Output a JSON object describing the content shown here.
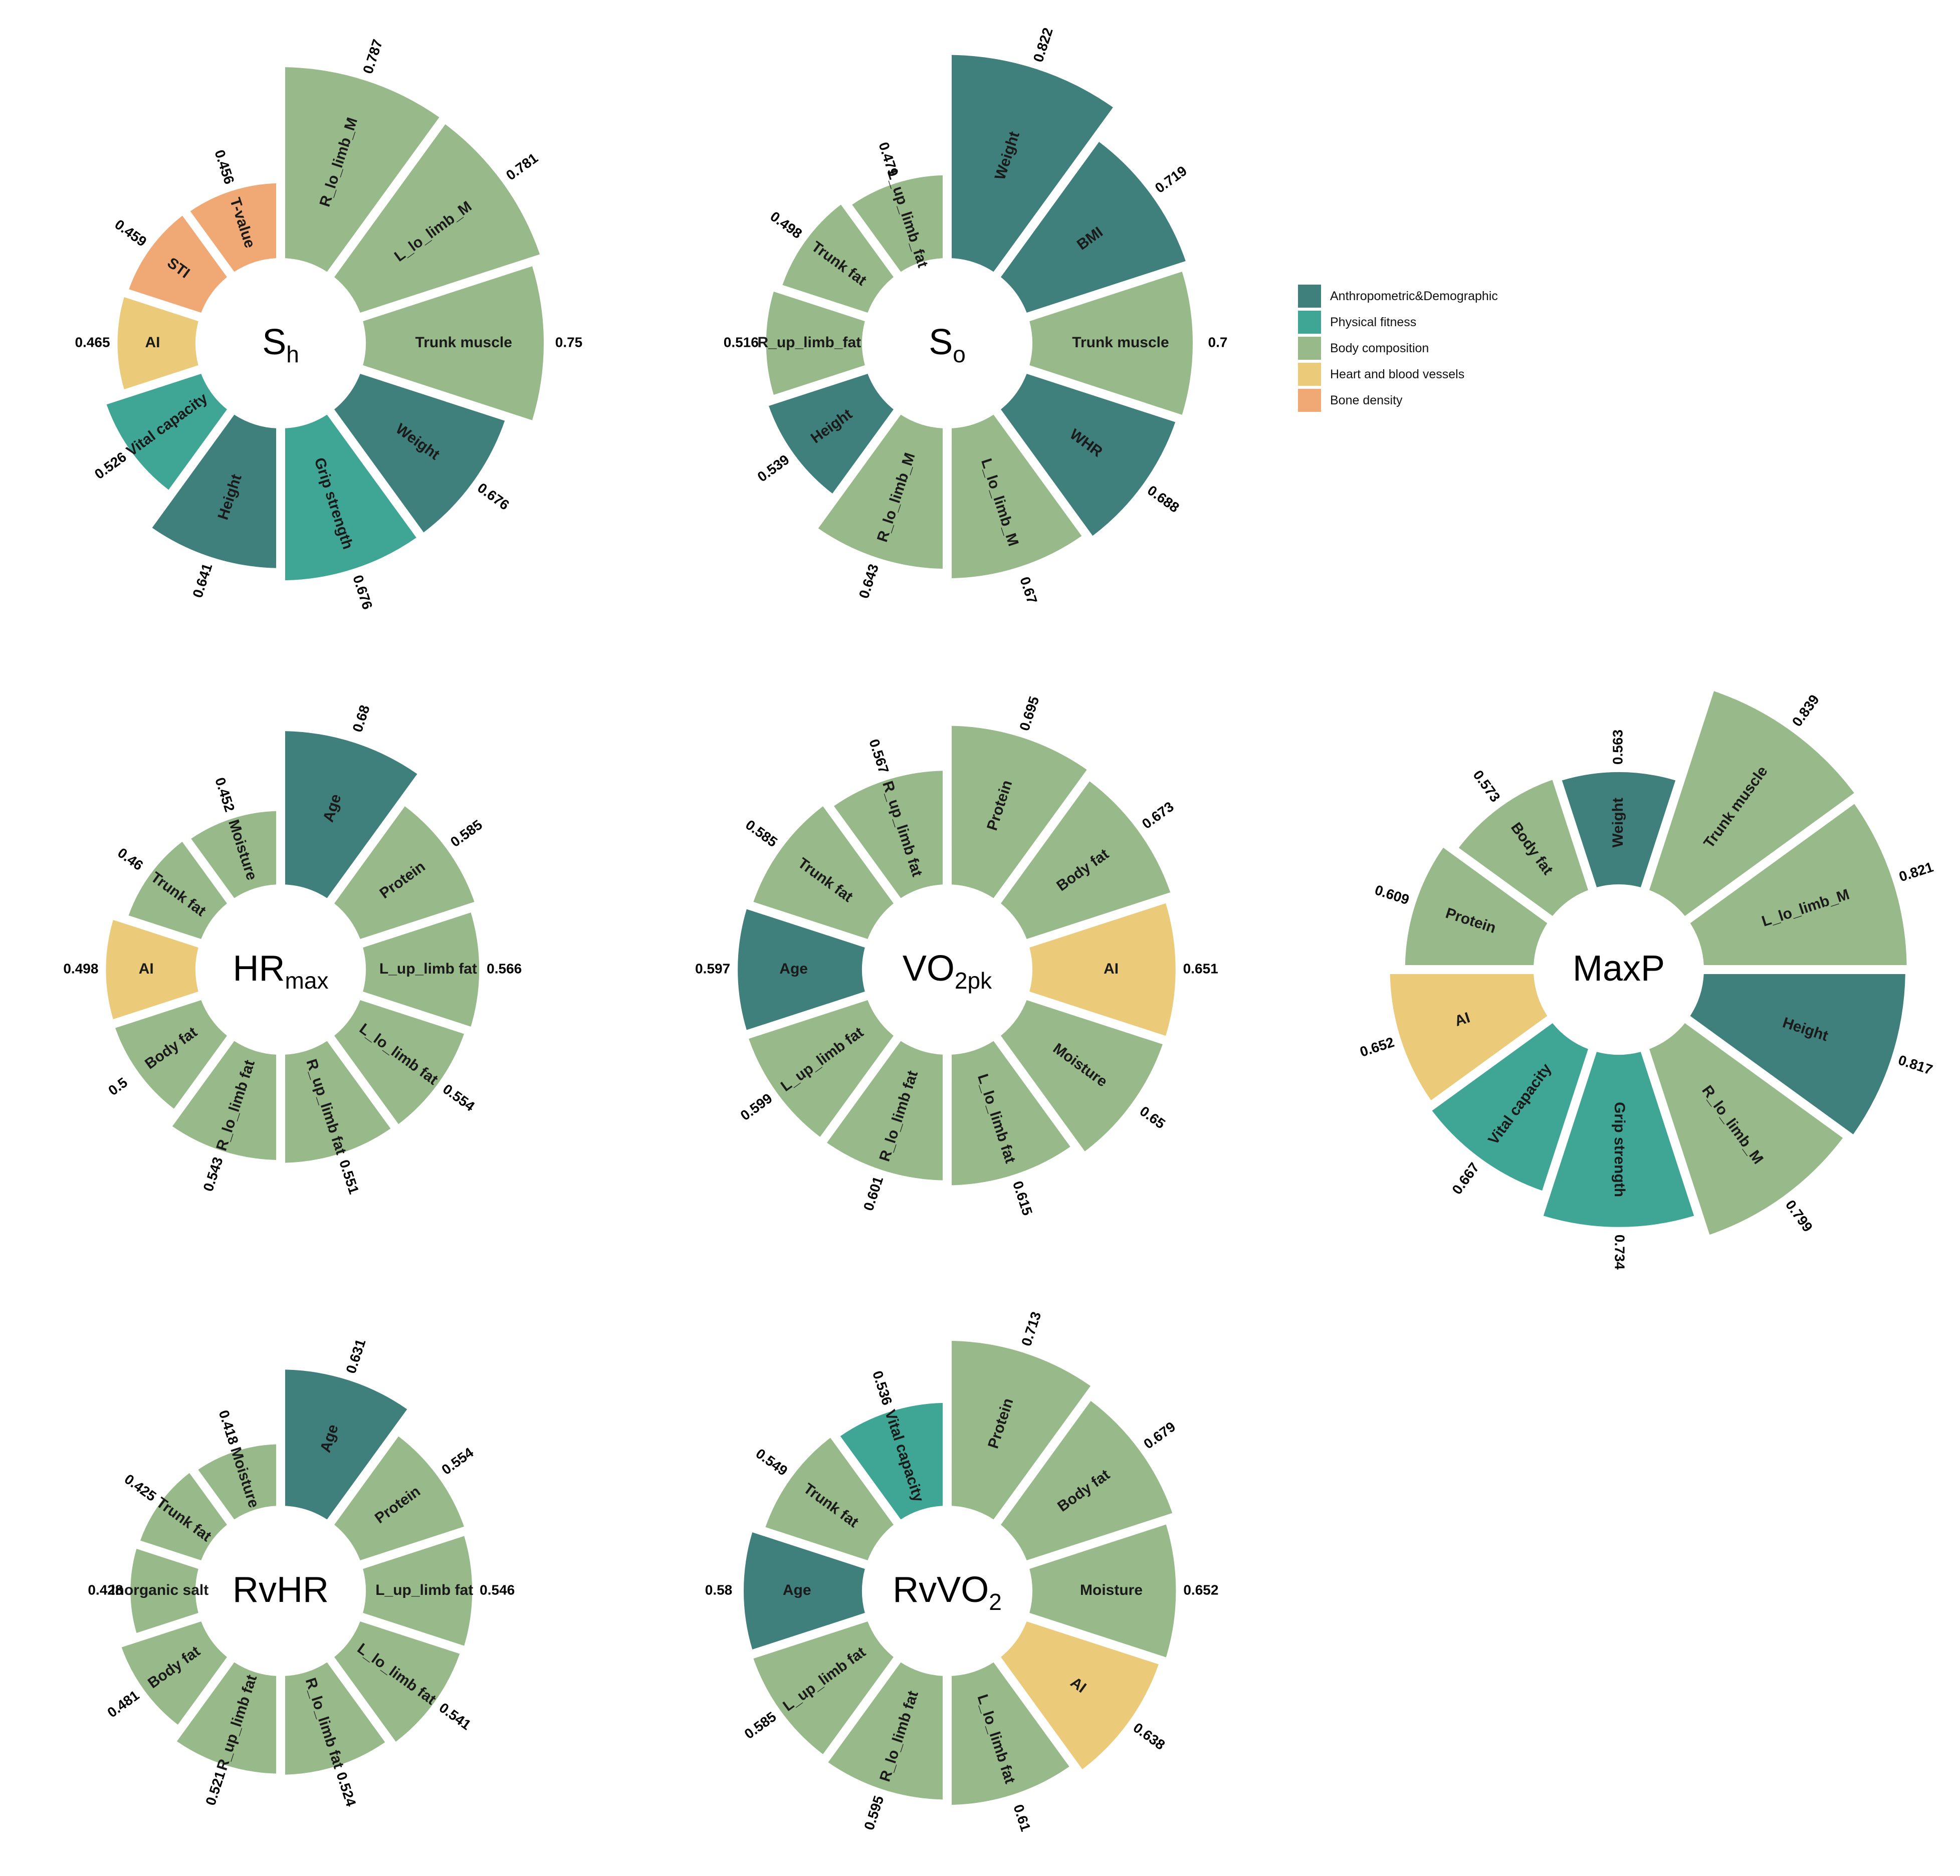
{
  "legend": {
    "items": [
      {
        "label": "Anthropometric&Demographic",
        "color": "#3f7f7c"
      },
      {
        "label": "Physical fitness",
        "color": "#3fa695"
      },
      {
        "label": "Body composition",
        "color": "#98b98a"
      },
      {
        "label": "Heart and blood vessels",
        "color": "#ebcb7a"
      },
      {
        "label": "Bone density",
        "color": "#f0a975"
      }
    ]
  },
  "chart_data": [
    {
      "type": "polar-bar",
      "center_label": {
        "main": "S",
        "sub": "h",
        "sup": ""
      },
      "segments": [
        {
          "label": "R_lo_limb_M",
          "value": 0.787,
          "category": "Body composition"
        },
        {
          "label": "L_lo_limb_M",
          "value": 0.781,
          "category": "Body composition"
        },
        {
          "label": "Trunk muscle",
          "value": 0.75,
          "category": "Body composition"
        },
        {
          "label": "Weight",
          "value": 0.676,
          "category": "Anthropometric&Demographic"
        },
        {
          "label": "Grip strength",
          "value": 0.676,
          "category": "Physical fitness"
        },
        {
          "label": "Height",
          "value": 0.641,
          "category": "Anthropometric&Demographic"
        },
        {
          "label": "Vital capacity",
          "value": 0.526,
          "category": "Physical fitness"
        },
        {
          "label": "AI",
          "value": 0.465,
          "category": "Heart and blood vessels"
        },
        {
          "label": "STI",
          "value": 0.459,
          "category": "Bone density"
        },
        {
          "label": "T-value",
          "value": 0.456,
          "category": "Bone density"
        }
      ]
    },
    {
      "type": "polar-bar",
      "center_label": {
        "main": "S",
        "sub": "o",
        "sup": ""
      },
      "segments": [
        {
          "label": "Weight",
          "value": 0.822,
          "category": "Anthropometric&Demographic"
        },
        {
          "label": "BMI",
          "value": 0.719,
          "category": "Anthropometric&Demographic"
        },
        {
          "label": "Trunk muscle",
          "value": 0.7,
          "category": "Body composition"
        },
        {
          "label": "WHR",
          "value": 0.688,
          "category": "Anthropometric&Demographic"
        },
        {
          "label": "L_lo_limb_M",
          "value": 0.67,
          "category": "Body composition"
        },
        {
          "label": "R_lo_limb_M",
          "value": 0.643,
          "category": "Body composition"
        },
        {
          "label": "Height",
          "value": 0.539,
          "category": "Anthropometric&Demographic"
        },
        {
          "label": "R_up_limb_fat",
          "value": 0.516,
          "category": "Body composition"
        },
        {
          "label": "Trunk fat",
          "value": 0.498,
          "category": "Body composition"
        },
        {
          "label": "L_up_limb_fat",
          "value": 0.479,
          "category": "Body composition"
        }
      ]
    },
    {
      "type": "polar-bar",
      "center_label": {
        "main": "HR",
        "sub": "max",
        "sup": ""
      },
      "segments": [
        {
          "label": "Age",
          "value": 0.68,
          "category": "Anthropometric&Demographic"
        },
        {
          "label": "Protein",
          "value": 0.585,
          "category": "Body composition"
        },
        {
          "label": "L_up_limb fat",
          "value": 0.566,
          "category": "Body composition"
        },
        {
          "label": "L_lo_limb fat",
          "value": 0.554,
          "category": "Body composition"
        },
        {
          "label": "R_up_limb fat",
          "value": 0.551,
          "category": "Body composition"
        },
        {
          "label": "R_lo_limb fat",
          "value": 0.543,
          "category": "Body composition"
        },
        {
          "label": "Body fat",
          "value": 0.5,
          "category": "Body composition"
        },
        {
          "label": "AI",
          "value": 0.498,
          "category": "Heart and blood vessels"
        },
        {
          "label": "Trunk fat",
          "value": 0.46,
          "category": "Body composition"
        },
        {
          "label": "Moisture",
          "value": 0.452,
          "category": "Body composition"
        }
      ]
    },
    {
      "type": "polar-bar",
      "center_label": {
        "main": "VO",
        "sub": "2pk",
        "sup": ""
      },
      "segments": [
        {
          "label": "Protein",
          "value": 0.695,
          "category": "Body composition"
        },
        {
          "label": "Body fat",
          "value": 0.673,
          "category": "Body composition"
        },
        {
          "label": "AI",
          "value": 0.651,
          "category": "Heart and blood vessels"
        },
        {
          "label": "Moisture",
          "value": 0.65,
          "category": "Body composition"
        },
        {
          "label": "L_lo_limb fat",
          "value": 0.615,
          "category": "Body composition"
        },
        {
          "label": "R_lo_limb fat",
          "value": 0.601,
          "category": "Body composition"
        },
        {
          "label": "L_up_limb fat",
          "value": 0.599,
          "category": "Body composition"
        },
        {
          "label": "Age",
          "value": 0.597,
          "category": "Anthropometric&Demographic"
        },
        {
          "label": "Trunk fat",
          "value": 0.585,
          "category": "Body composition"
        },
        {
          "label": "R_up_limb fat",
          "value": 0.567,
          "category": "Body composition"
        }
      ]
    },
    {
      "type": "polar-bar",
      "center_label": {
        "main": "MaxP",
        "sub": "",
        "sup": ""
      },
      "segments": [
        {
          "label": "Trunk muscle",
          "value": 0.839,
          "category": "Body composition"
        },
        {
          "label": "L_lo_limb_M",
          "value": 0.821,
          "category": "Body composition"
        },
        {
          "label": "Height",
          "value": 0.817,
          "category": "Anthropometric&Demographic"
        },
        {
          "label": "R_lo_limb_M",
          "value": 0.799,
          "category": "Body composition"
        },
        {
          "label": "Grip strength",
          "value": 0.734,
          "category": "Physical fitness"
        },
        {
          "label": "Vital capacity",
          "value": 0.667,
          "category": "Physical fitness"
        },
        {
          "label": "AI",
          "value": 0.652,
          "category": "Heart and blood vessels"
        },
        {
          "label": "Protein",
          "value": 0.609,
          "category": "Body composition"
        },
        {
          "label": "Body fat",
          "value": 0.573,
          "category": "Body composition"
        },
        {
          "label": "Weight",
          "value": 0.563,
          "category": "Anthropometric&Demographic"
        }
      ]
    },
    {
      "type": "polar-bar",
      "center_label": {
        "main": "RvHR",
        "sub": "",
        "sup": ""
      },
      "segments": [
        {
          "label": "Age",
          "value": 0.631,
          "category": "Anthropometric&Demographic"
        },
        {
          "label": "Protein",
          "value": 0.554,
          "category": "Body composition"
        },
        {
          "label": "L_up_limb fat",
          "value": 0.546,
          "category": "Body composition"
        },
        {
          "label": "L_lo_limb fat",
          "value": 0.541,
          "category": "Body composition"
        },
        {
          "label": "R_lo_limb fat",
          "value": 0.524,
          "category": "Body composition"
        },
        {
          "label": "R_up_limb fat",
          "value": 0.521,
          "category": "Body composition"
        },
        {
          "label": "Body fat",
          "value": 0.481,
          "category": "Body composition"
        },
        {
          "label": "Inorganic salt",
          "value": 0.428,
          "category": "Body composition"
        },
        {
          "label": "Trunk fat",
          "value": 0.425,
          "category": "Body composition"
        },
        {
          "label": "Moisture",
          "value": 0.418,
          "category": "Body composition"
        }
      ]
    },
    {
      "type": "polar-bar",
      "center_label": {
        "main": "RvVO",
        "sub": "2",
        "sup": ""
      },
      "segments": [
        {
          "label": "Protein",
          "value": 0.713,
          "category": "Body composition"
        },
        {
          "label": "Body fat",
          "value": 0.679,
          "category": "Body composition"
        },
        {
          "label": "Moisture",
          "value": 0.652,
          "category": "Body composition"
        },
        {
          "label": "AI",
          "value": 0.638,
          "category": "Heart and blood vessels"
        },
        {
          "label": "L_lo_limb fat",
          "value": 0.61,
          "category": "Body composition"
        },
        {
          "label": "R_lo_limb fat",
          "value": 0.595,
          "category": "Body composition"
        },
        {
          "label": "L_up_limb fat",
          "value": 0.585,
          "category": "Body composition"
        },
        {
          "label": "Age",
          "value": 0.58,
          "category": "Anthropometric&Demographic"
        },
        {
          "label": "Trunk fat",
          "value": 0.549,
          "category": "Body composition"
        },
        {
          "label": "Vital capacity",
          "value": 0.536,
          "category": "Physical fitness"
        }
      ]
    }
  ]
}
